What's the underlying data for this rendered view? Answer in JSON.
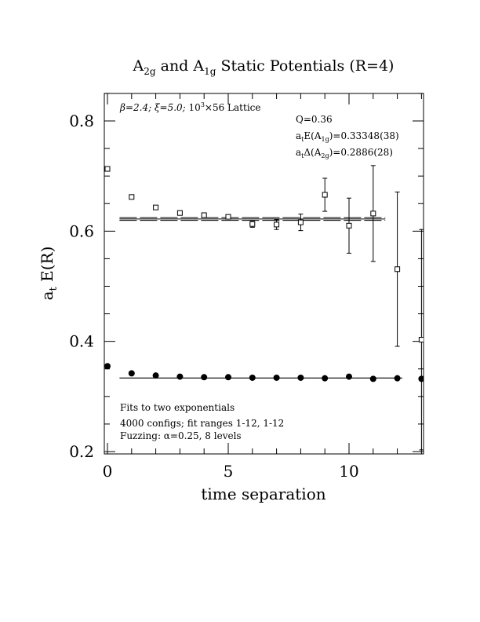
{
  "chart_data": {
    "type": "scatter",
    "title": {
      "prefix": "A",
      "prefix_sub": "2g",
      "middle": " and A",
      "middle_sub": "1g",
      "suffix": " Static Potentials (R=4)"
    },
    "xlabel": "time separation",
    "ylabel": {
      "main": "a",
      "sub": "t",
      "rest": " E(R)"
    },
    "xlim": [
      -0.3,
      13
    ],
    "ylim": [
      0.2,
      0.85
    ],
    "x_ticks": [
      0,
      5,
      10
    ],
    "x_tick_labels": [
      "0",
      "5",
      "10"
    ],
    "y_ticks": [
      0.2,
      0.4,
      0.6,
      0.8
    ],
    "y_tick_labels": [
      "0.2",
      "0.4",
      "0.6",
      "0.8"
    ],
    "annotations": {
      "lattice": {
        "beta": "β=2.4; ",
        "xi": "ξ=5.0; ",
        "size": "10",
        "size_sup": "3",
        "rest": "×56 Lattice"
      },
      "q": "Q=0.36",
      "energy": {
        "pre": "a",
        "pre_sub": "t",
        "mid": "E(A",
        "mid_sub": "1g",
        "post": ")=0.33348(38)"
      },
      "delta": {
        "pre": "a",
        "pre_sub": "t",
        "mid": "Δ(A",
        "mid_sub": "2g",
        "post": ")=0.2886(28)"
      },
      "fits": "Fits to two exponentials",
      "configs": "4000 configs; fit ranges 1-12, 1-12",
      "fuzzing": "Fuzzing: α=0.25, 8 levels"
    },
    "series": [
      {
        "marker": "open-square",
        "points": [
          {
            "x": 0,
            "y": 0.713,
            "err": 0.002
          },
          {
            "x": 1,
            "y": 0.662,
            "err": 0.002
          },
          {
            "x": 2,
            "y": 0.643,
            "err": 0.003
          },
          {
            "x": 3,
            "y": 0.633,
            "err": 0.003
          },
          {
            "x": 4,
            "y": 0.629,
            "err": 0.004
          },
          {
            "x": 5,
            "y": 0.626,
            "err": 0.004
          },
          {
            "x": 6,
            "y": 0.613,
            "err": 0.006
          },
          {
            "x": 7,
            "y": 0.612,
            "err": 0.009
          },
          {
            "x": 8,
            "y": 0.616,
            "err": 0.015
          },
          {
            "x": 9,
            "y": 0.666,
            "err": 0.03
          },
          {
            "x": 10,
            "y": 0.61,
            "err": 0.05
          },
          {
            "x": 11,
            "y": 0.632,
            "err": 0.087
          },
          {
            "x": 12,
            "y": 0.531,
            "err": 0.14
          },
          {
            "x": 13,
            "y": 0.403,
            "err": 0.2
          }
        ],
        "fit": {
          "y": 0.6221,
          "err": 0.0025,
          "x_range": [
            0.5,
            11.5
          ]
        }
      },
      {
        "marker": "filled-circle",
        "points": [
          {
            "x": 0,
            "y": 0.355
          },
          {
            "x": 1,
            "y": 0.342
          },
          {
            "x": 2,
            "y": 0.338
          },
          {
            "x": 3,
            "y": 0.336
          },
          {
            "x": 4,
            "y": 0.335
          },
          {
            "x": 5,
            "y": 0.335
          },
          {
            "x": 6,
            "y": 0.334
          },
          {
            "x": 7,
            "y": 0.334
          },
          {
            "x": 8,
            "y": 0.334
          },
          {
            "x": 9,
            "y": 0.333
          },
          {
            "x": 10,
            "y": 0.336
          },
          {
            "x": 11,
            "y": 0.332
          },
          {
            "x": 12,
            "y": 0.333
          },
          {
            "x": 13,
            "y": 0.332
          }
        ],
        "fit": {
          "y": 0.3335,
          "err": 0.0004,
          "x_range": [
            0.5,
            12.2
          ]
        }
      }
    ]
  }
}
